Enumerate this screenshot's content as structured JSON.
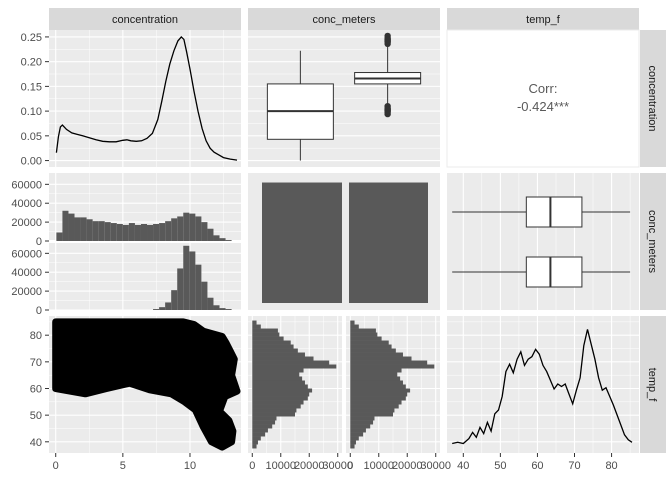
{
  "chart_data": {
    "type": "pairs",
    "variables": [
      "concentration",
      "conc_meters",
      "temp_f"
    ],
    "grid": true,
    "panels": {
      "concentration_density": {
        "type": "line",
        "xlim": [
          -0.5,
          13.8
        ],
        "ylim": [
          -0.013,
          0.264
        ],
        "x": [
          0.05,
          0.2,
          0.35,
          0.5,
          0.8,
          1.2,
          1.6,
          2.0,
          2.5,
          3.0,
          3.5,
          4.0,
          4.5,
          5.0,
          5.3,
          5.6,
          6.0,
          6.4,
          6.8,
          7.2,
          7.6,
          7.9,
          8.2,
          8.5,
          8.8,
          9.1,
          9.35,
          9.55,
          9.75,
          10.0,
          10.3,
          10.6,
          10.9,
          11.2,
          11.5,
          11.8,
          12.1,
          12.5,
          13.0,
          13.5
        ],
        "y": [
          0.016,
          0.048,
          0.068,
          0.072,
          0.063,
          0.056,
          0.053,
          0.05,
          0.046,
          0.042,
          0.039,
          0.038,
          0.038,
          0.041,
          0.042,
          0.04,
          0.039,
          0.04,
          0.045,
          0.055,
          0.083,
          0.12,
          0.16,
          0.195,
          0.222,
          0.242,
          0.25,
          0.245,
          0.22,
          0.185,
          0.14,
          0.1,
          0.065,
          0.04,
          0.025,
          0.017,
          0.012,
          0.006,
          0.003,
          0.001
        ],
        "yticks": [
          "0.00",
          "0.05",
          "0.10",
          "0.15",
          "0.20",
          "0.25"
        ],
        "ytick_values": [
          0,
          0.05,
          0.1,
          0.15,
          0.2,
          0.25
        ]
      },
      "concentration_by_conc_meters_box": {
        "type": "boxplot",
        "xlim": [
          0.4,
          2.6
        ],
        "ylim": [
          -0.013,
          0.264
        ],
        "boxes": [
          {
            "whisker_low": 0.0,
            "q1": 0.043,
            "median": 0.1,
            "q3": 0.155,
            "whisker_high": 0.222,
            "outliers": []
          },
          {
            "whisker_low": 0.1,
            "q1": 0.155,
            "median": 0.166,
            "q3": 0.178,
            "whisker_high": 0.234,
            "outliers_low": [
              0.094,
              0.098,
              0.102,
              0.106,
              0.11
            ],
            "outliers_high": [
              0.236,
              0.24,
              0.244,
              0.248,
              0.252
            ]
          }
        ]
      },
      "correlation": {
        "type": "text",
        "label": "Corr:",
        "value": "-0.424***"
      },
      "concentration_histogram_by_conc_meters": {
        "type": "bar",
        "xlim": [
          -0.5,
          13.8
        ],
        "ylim": [
          0,
          72000
        ],
        "yticks": [
          "0",
          "20000",
          "40000",
          "60000"
        ],
        "ytick_values": [
          0,
          20000,
          40000,
          60000
        ],
        "bin_start": 0.05,
        "bin_width": 0.45,
        "series": [
          {
            "values": [
              9000,
              32000,
              29000,
              25000,
              25000,
              23000,
              21000,
              21000,
              20000,
              19000,
              18000,
              17000,
              19000,
              17000,
              18000,
              17000,
              18000,
              19000,
              21000,
              24000,
              26000,
              30000,
              29000,
              26000,
              20000,
              13000,
              6000,
              3000,
              1000,
              0
            ]
          },
          {
            "values": [
              0,
              0,
              0,
              0,
              0,
              0,
              0,
              0,
              0,
              0,
              0,
              0,
              0,
              0,
              0,
              0,
              1000,
              3000,
              8000,
              21000,
              44000,
              68000,
              62000,
              48000,
              30000,
              13000,
              5000,
              2000,
              1000,
              0
            ]
          }
        ]
      },
      "conc_meters_bar": {
        "type": "bar",
        "ylim": [
          0,
          72000
        ],
        "values": [
          67000,
          67000
        ]
      },
      "temp_f_by_conc_meters_box": {
        "type": "boxplot",
        "orientation": "horizontal",
        "xlim": [
          35.6,
          87.4
        ],
        "boxes": [
          {
            "whisker_low": 37,
            "q1": 57,
            "median": 63.5,
            "q3": 72,
            "whisker_high": 85
          },
          {
            "whisker_low": 37,
            "q1": 57,
            "median": 63.5,
            "q3": 72,
            "whisker_high": 85
          }
        ]
      },
      "temp_f_vs_concentration_scatter": {
        "type": "scatter",
        "xlim": [
          -0.5,
          13.8
        ],
        "ylim": [
          35.8,
          87.2
        ],
        "xticks": [
          "0",
          "5",
          "10"
        ],
        "xtick_values": [
          0,
          5,
          10
        ],
        "yticks": [
          "40",
          "50",
          "60",
          "70",
          "80"
        ],
        "ytick_values": [
          40,
          50,
          60,
          70,
          80
        ],
        "region": [
          {
            "x": 0.0,
            "y": 85.0
          },
          {
            "x": 9.5,
            "y": 85.0
          },
          {
            "x": 10.3,
            "y": 84.0
          },
          {
            "x": 11.0,
            "y": 81.5
          },
          {
            "x": 12.4,
            "y": 79.5
          },
          {
            "x": 12.7,
            "y": 77.0
          },
          {
            "x": 13.0,
            "y": 74.0
          },
          {
            "x": 13.3,
            "y": 71.0
          },
          {
            "x": 13.1,
            "y": 65.0
          },
          {
            "x": 13.5,
            "y": 59.0
          },
          {
            "x": 12.6,
            "y": 57.0
          },
          {
            "x": 12.2,
            "y": 51.5
          },
          {
            "x": 12.9,
            "y": 48.0
          },
          {
            "x": 13.2,
            "y": 44.0
          },
          {
            "x": 13.1,
            "y": 40.0
          },
          {
            "x": 12.4,
            "y": 38.0
          },
          {
            "x": 11.6,
            "y": 40.0
          },
          {
            "x": 11.0,
            "y": 45.5
          },
          {
            "x": 10.4,
            "y": 52.0
          },
          {
            "x": 9.6,
            "y": 55.0
          },
          {
            "x": 8.6,
            "y": 58.0
          },
          {
            "x": 7.0,
            "y": 59.5
          },
          {
            "x": 5.5,
            "y": 62.0
          },
          {
            "x": 3.8,
            "y": 60.0
          },
          {
            "x": 2.2,
            "y": 58.0
          },
          {
            "x": 0.0,
            "y": 60.0
          }
        ]
      },
      "temp_f_histogram_by_conc_meters": {
        "type": "bar",
        "orientation": "horizontal",
        "xlim": [
          -1500,
          31500
        ],
        "xticks": [
          "0",
          "10000",
          "20000",
          "30000"
        ],
        "xtick_values": [
          0,
          10000,
          20000,
          30000
        ],
        "bin_start": 37.5,
        "bin_width": 1.5,
        "series": [
          {
            "values": [
              1500,
              2000,
              3000,
              4500,
              5500,
              7000,
              8000,
              8500,
              15000,
              15500,
              17000,
              18000,
              19500,
              20000,
              21000,
              19500,
              18500,
              17500,
              16500,
              18000,
              29500,
              27000,
              21500,
              18500,
              16000,
              14500,
              13500,
              11000,
              9500,
              9000,
              3000,
              1500
            ]
          },
          {
            "values": [
              1500,
              2000,
              3000,
              4500,
              5500,
              7000,
              8000,
              8500,
              15000,
              15500,
              17000,
              18000,
              19500,
              20000,
              21000,
              19500,
              18500,
              17500,
              16500,
              18000,
              29500,
              27000,
              21500,
              18500,
              16000,
              14500,
              13500,
              11000,
              9500,
              9000,
              3000,
              1500
            ]
          }
        ]
      },
      "temp_f_density": {
        "type": "line",
        "xlim": [
          35.6,
          87.4
        ],
        "xticks": [
          "40",
          "50",
          "60",
          "70",
          "80"
        ],
        "xtick_values": [
          40,
          50,
          60,
          70,
          80
        ],
        "ylim": [
          0,
          1
        ],
        "x": [
          37,
          38.5,
          40,
          41.5,
          42.5,
          43.5,
          44.5,
          45.5,
          46.5,
          47.5,
          48.5,
          49.5,
          50.5,
          51.5,
          52.5,
          53.5,
          54.5,
          55.5,
          56.5,
          57.5,
          58.5,
          59.5,
          60.5,
          61.5,
          62.5,
          63.5,
          64.5,
          65.5,
          66.5,
          67.5,
          68.5,
          69.5,
          70.5,
          71.5,
          72.5,
          73.5,
          74.5,
          75.5,
          76.5,
          77.5,
          78.5,
          79.5,
          80.5,
          81.5,
          82.5,
          83.5,
          84.5,
          85.5
        ],
        "y": [
          0.02,
          0.03,
          0.02,
          0.06,
          0.11,
          0.07,
          0.15,
          0.1,
          0.19,
          0.12,
          0.26,
          0.29,
          0.4,
          0.6,
          0.66,
          0.59,
          0.7,
          0.76,
          0.65,
          0.7,
          0.72,
          0.78,
          0.74,
          0.65,
          0.6,
          0.53,
          0.46,
          0.5,
          0.48,
          0.5,
          0.42,
          0.34,
          0.45,
          0.55,
          0.81,
          0.94,
          0.82,
          0.7,
          0.55,
          0.45,
          0.47,
          0.4,
          0.33,
          0.25,
          0.17,
          0.09,
          0.05,
          0.03
        ]
      }
    }
  }
}
